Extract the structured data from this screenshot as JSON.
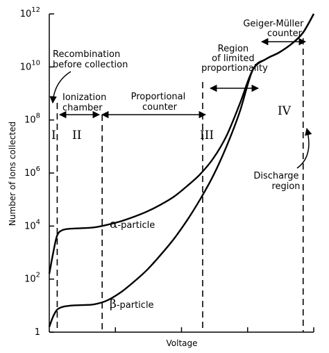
{
  "chart_data": {
    "type": "line",
    "title": "",
    "xlabel": "Voltage",
    "ylabel": "Number of Ions collected",
    "yscale": "log",
    "ylim_exp": [
      0,
      12
    ],
    "y_ticks": [
      {
        "base": "1",
        "exp": ""
      },
      {
        "base": "10",
        "exp": "2"
      },
      {
        "base": "10",
        "exp": "4"
      },
      {
        "base": "10",
        "exp": "6"
      },
      {
        "base": "10",
        "exp": "8"
      },
      {
        "base": "10",
        "exp": "10"
      },
      {
        "base": "10",
        "exp": "12"
      }
    ],
    "xlim": [
      0,
      100
    ],
    "series": [
      {
        "name": "α-particle",
        "greek": "α",
        "suffix": "-particle",
        "x": [
          0,
          1.5,
          3,
          5,
          8,
          12,
          17,
          22,
          27,
          32,
          37,
          42,
          47,
          52,
          57,
          62,
          67,
          72,
          77,
          82,
          87,
          92,
          96,
          100
        ],
        "log10y": [
          2.2,
          3.0,
          3.65,
          3.85,
          3.9,
          3.92,
          3.95,
          4.05,
          4.18,
          4.35,
          4.55,
          4.8,
          5.1,
          5.5,
          5.95,
          6.55,
          7.4,
          8.6,
          9.9,
          10.3,
          10.55,
          10.9,
          11.3,
          12.0
        ]
      },
      {
        "name": "β-particle",
        "greek": "β",
        "suffix": "-particle",
        "x": [
          0,
          1.5,
          3,
          5,
          8,
          12,
          17,
          22,
          27,
          32,
          37,
          42,
          47,
          52,
          57,
          62,
          67,
          72,
          77,
          82,
          87,
          92,
          96,
          100
        ],
        "log10y": [
          0.2,
          0.6,
          0.85,
          0.95,
          1.0,
          1.02,
          1.05,
          1.2,
          1.5,
          1.9,
          2.35,
          2.9,
          3.5,
          4.2,
          5.0,
          5.9,
          7.0,
          8.3,
          9.9,
          10.3,
          10.55,
          10.9,
          11.3,
          12.0
        ]
      }
    ],
    "regions": [
      {
        "roman": "I",
        "x_end": 3
      },
      {
        "roman": "II",
        "x_end": 20
      },
      {
        "roman": "III",
        "x_end": 58
      },
      {
        "roman": "IV",
        "x_end": 96
      }
    ],
    "annotations": {
      "recombination": [
        "Recombination",
        "before collection"
      ],
      "ionization": [
        "Ionization",
        "chamber"
      ],
      "proportional": [
        "Proportional",
        "counter"
      ],
      "limited": [
        "Region",
        "of limited",
        "proportionality"
      ],
      "geiger": [
        "Geiger-Müller",
        "counter"
      ],
      "discharge": [
        "Discharge",
        "region"
      ]
    }
  }
}
